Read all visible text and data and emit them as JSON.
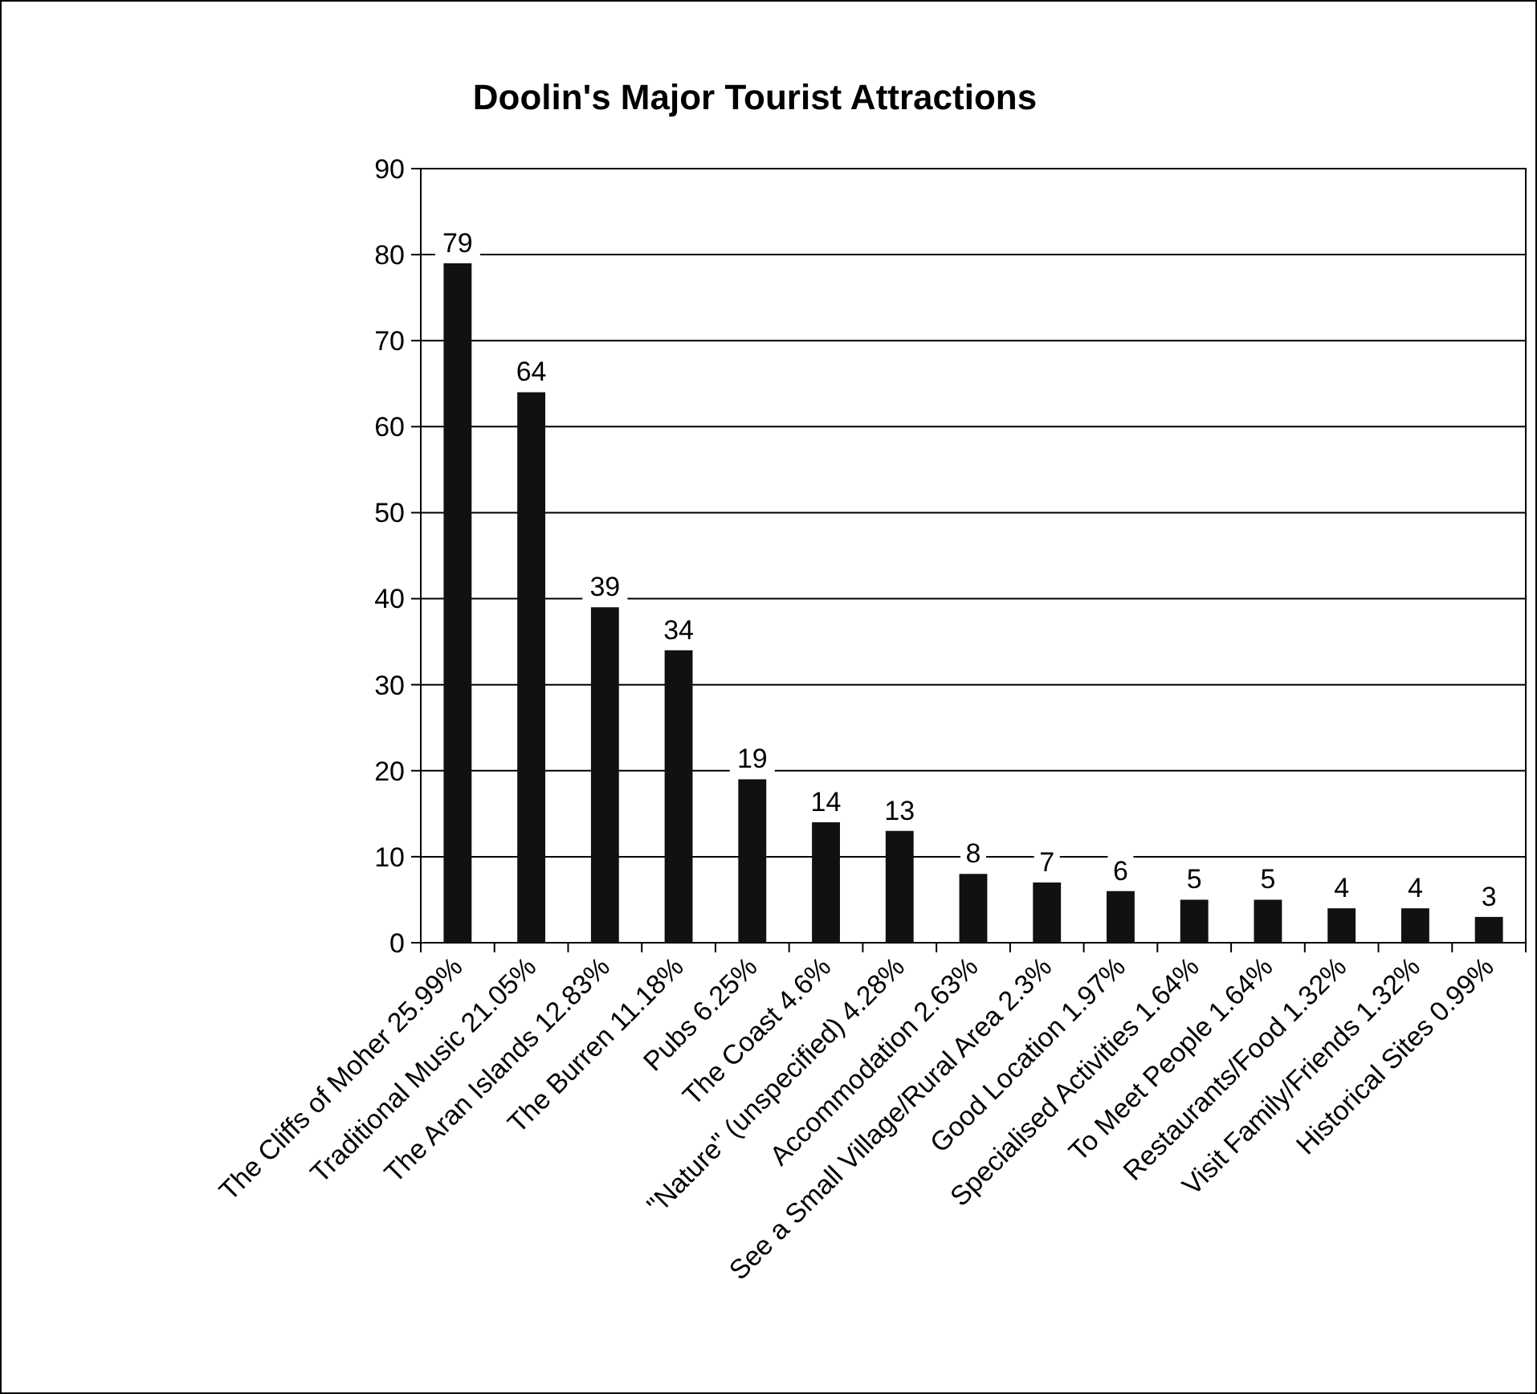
{
  "chart_data": {
    "type": "bar",
    "title": "Doolin's Major Tourist Attractions",
    "categories": [
      "The Cliffs of Moher 25.99%",
      "Traditional Music 21.05%",
      "The Aran Islands 12.83%",
      "The Burren 11.18%",
      "Pubs 6.25%",
      "The Coast 4.6%",
      "\"Nature\" (unspecified) 4.28%",
      "Accommodation 2.63%",
      "See a Small Village/Rural Area 2.3%",
      "Good Location 1.97%",
      "Specialised Activities 1.64%",
      "To Meet People 1.64%",
      "Restaurants/Food 1.32%",
      "Visit Family/Friends 1.32%",
      "Historical Sites 0.99%"
    ],
    "values": [
      79,
      64,
      39,
      34,
      19,
      14,
      13,
      8,
      7,
      6,
      5,
      5,
      4,
      4,
      3
    ],
    "color": "#111111",
    "ylim": [
      0,
      90
    ],
    "yticks": [
      0,
      10,
      20,
      30,
      40,
      50,
      60,
      70,
      80,
      90
    ],
    "grid": "y",
    "data_labels": true
  }
}
